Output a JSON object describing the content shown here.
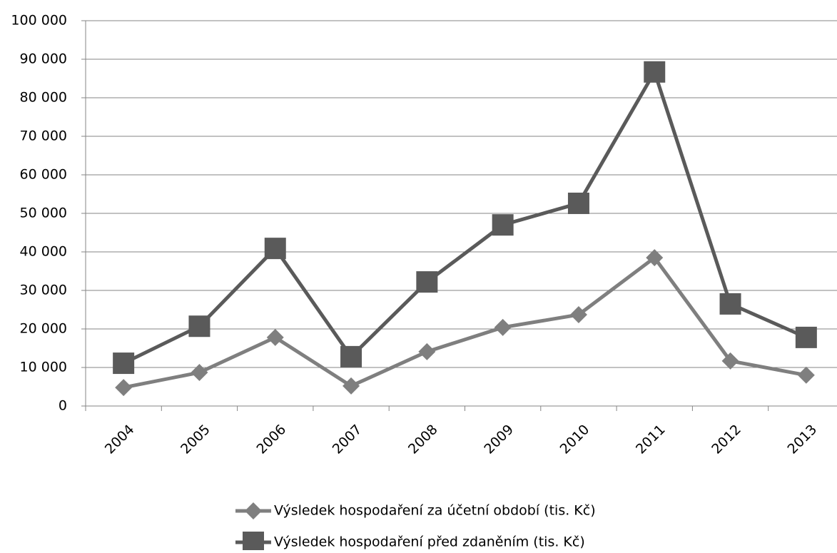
{
  "chart_data": {
    "type": "line",
    "categories": [
      "2004",
      "2005",
      "2006",
      "2007",
      "2008",
      "2009",
      "2010",
      "2011",
      "2012",
      "2013"
    ],
    "series": [
      {
        "name": "Výsledek hospodaření za účetní období (tis. Kč)",
        "color": "#7f7f7f",
        "marker": "diamond",
        "values": [
          4800,
          8700,
          17800,
          5200,
          14100,
          20400,
          23700,
          38500,
          11700,
          8000
        ]
      },
      {
        "name": "Výsledek hospodaření před zdaněním (tis. Kč)",
        "color": "#5a5a5a",
        "marker": "square",
        "values": [
          11100,
          20700,
          40900,
          12800,
          32200,
          47000,
          52600,
          86700,
          26500,
          17800
        ]
      }
    ],
    "ylim": [
      0,
      100000
    ],
    "yticks": [
      0,
      {
        "value": 10000,
        "label": "10 000"
      },
      {
        "value": 20000,
        "label": "20 000"
      },
      {
        "value": 30000,
        "label": "30 000"
      },
      {
        "value": 40000,
        "label": "40 000"
      },
      {
        "value": 50000,
        "label": "50 000"
      },
      {
        "value": 60000,
        "label": "60 000"
      },
      {
        "value": 70000,
        "label": "70 000"
      },
      {
        "value": 80000,
        "label": "80 000"
      },
      {
        "value": 90000,
        "label": "90 000"
      },
      {
        "value": 100000,
        "label": "100 000"
      }
    ],
    "grid": true,
    "legend": "bottom"
  }
}
